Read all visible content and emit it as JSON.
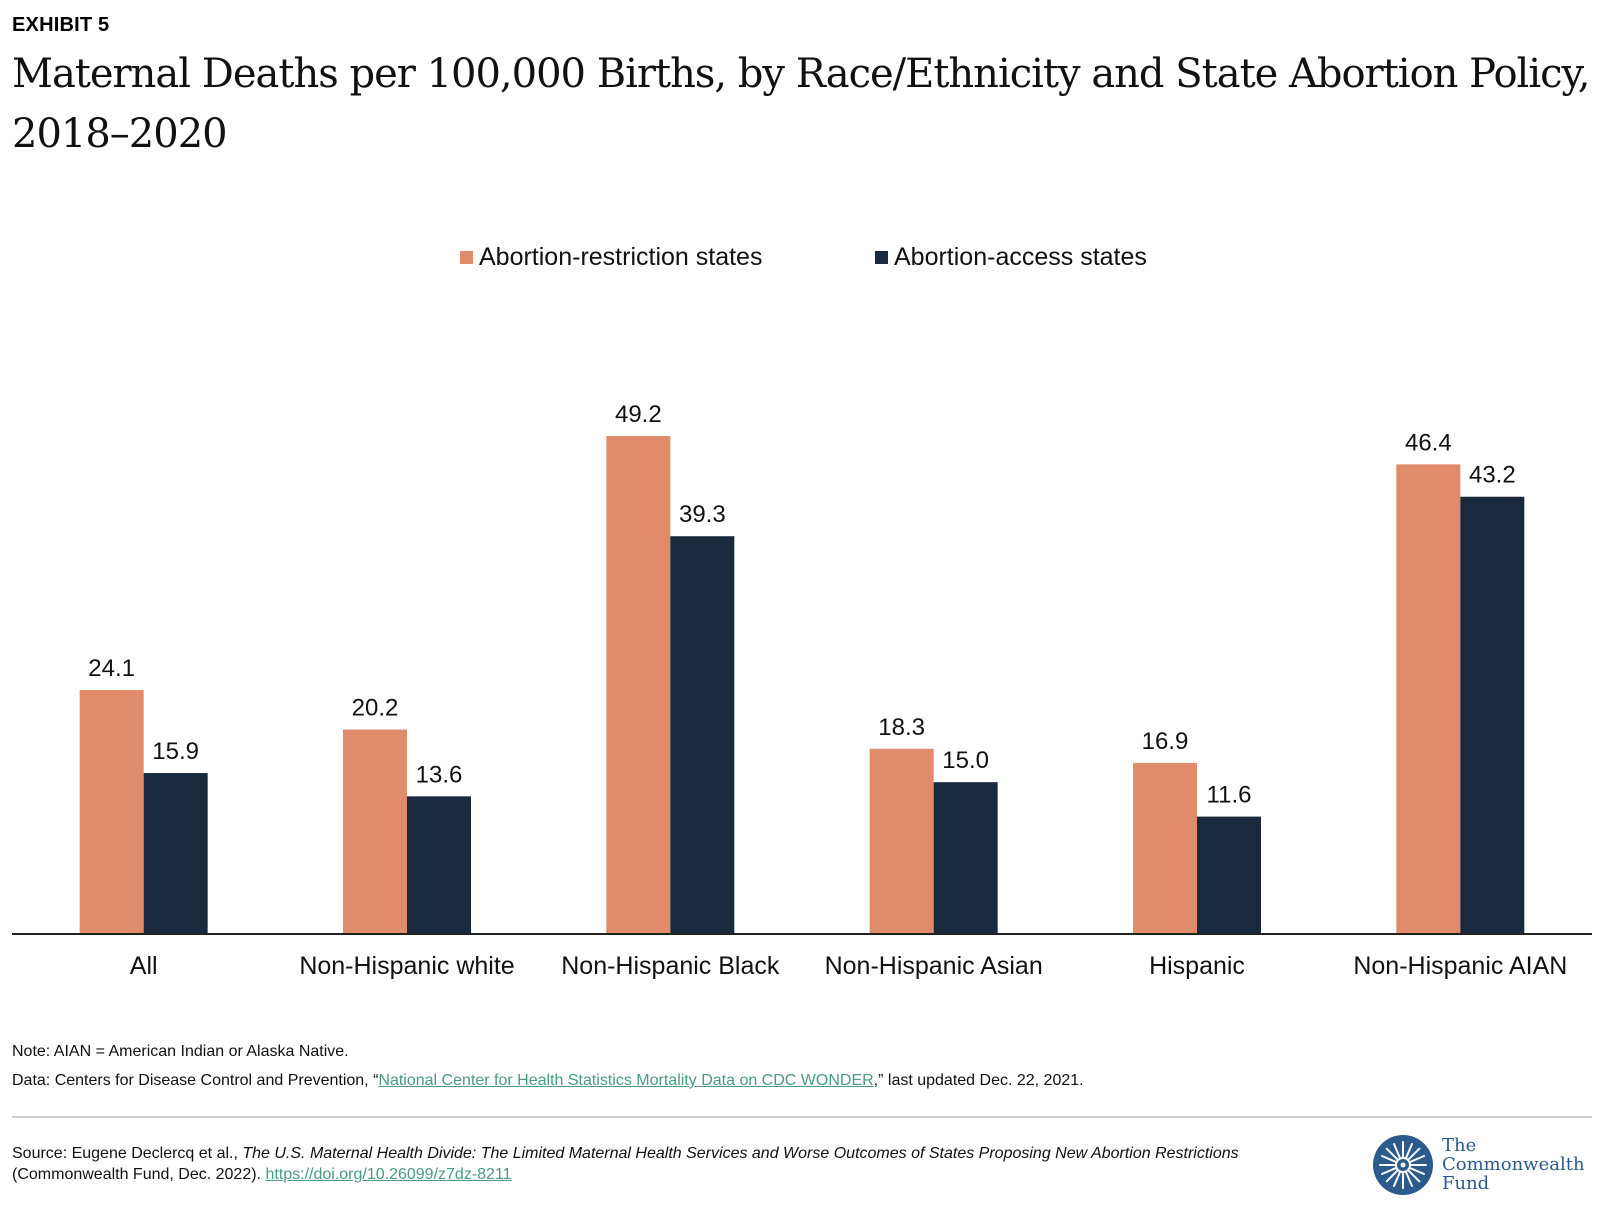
{
  "header": {
    "exhibit_label": "EXHIBIT 5",
    "title_line1": "Maternal Deaths per 100,000 Births, by Race/Ethnicity and State Abortion Policy,",
    "title_line2": "2018–2020"
  },
  "chart_data": {
    "type": "bar",
    "categories": [
      "All",
      "Non-Hispanic white",
      "Non-Hispanic Black",
      "Non-Hispanic Asian",
      "Hispanic",
      "Non-Hispanic AIAN"
    ],
    "series": [
      {
        "name": "Abortion-restriction states",
        "values": [
          24.1,
          20.2,
          49.2,
          18.3,
          16.9,
          46.4
        ],
        "labels": [
          "24.1",
          "20.2",
          "49.2",
          "18.3",
          "16.9",
          "46.4"
        ],
        "color": "#e08c6a"
      },
      {
        "name": "Abortion-access states",
        "values": [
          15.9,
          13.6,
          39.3,
          15.0,
          11.6,
          43.2
        ],
        "labels": [
          "15.9",
          "13.6",
          "39.3",
          "15.0",
          "11.6",
          "43.2"
        ],
        "color": "#1a2a3e"
      }
    ],
    "ylim": [
      0,
      49.2
    ],
    "grid": false,
    "legend_position": "top-center"
  },
  "notes": {
    "note_line": "Note: AIAN = American Indian or Alaska Native.",
    "data_prefix": "Data: Centers for Disease Control and Prevention, “",
    "data_link": "National Center for Health Statistics Mortality Data on CDC WONDER",
    "data_suffix": ",” last updated Dec. 22, 2021."
  },
  "source": {
    "prefix": "Source: Eugene Declercq et al., ",
    "italic_title": "The U.S. Maternal Health Divide: The Limited Maternal Health Services and Worse Outcomes of States Proposing New Abortion Restrictions",
    "publisher": " (Commonwealth Fund, Dec. 2022). ",
    "doi_link": "https://doi.org/10.26099/z7dz-8211"
  },
  "logo": {
    "line1": "The",
    "line2": "Commonwealth",
    "line3": "Fund",
    "color": "#2c5a8c",
    "icon": "starburst-icon"
  }
}
